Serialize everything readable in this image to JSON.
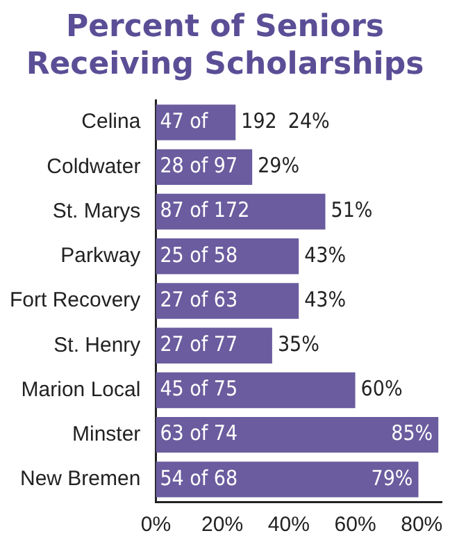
{
  "chart_data": {
    "type": "bar",
    "orientation": "horizontal",
    "title": "Percent of Seniors Receiving Scholarships",
    "categories": [
      "Celina",
      "Coldwater",
      "St. Marys",
      "Parkway",
      "Fort Recovery",
      "St. Henry",
      "Marion Local",
      "Minster",
      "New Bremen"
    ],
    "values": [
      24,
      29,
      51,
      43,
      43,
      35,
      60,
      85,
      79
    ],
    "value_labels": [
      "24%",
      "29%",
      "51%",
      "43%",
      "43%",
      "35%",
      "60%",
      "85%",
      "79%"
    ],
    "color": "#6a5c9e",
    "xlim": [
      0,
      86
    ],
    "xticks": [
      {
        "value": 0,
        "label": "0%"
      },
      {
        "value": 20,
        "label": "20%"
      },
      {
        "value": 40,
        "label": "40%"
      },
      {
        "value": 60,
        "label": "60%"
      },
      {
        "value": 80,
        "label": "80%"
      }
    ],
    "annotations": [
      {
        "text": "47 of",
        "y": "Celina"
      },
      {
        "text": "192",
        "x": 24,
        "y": "Celina"
      },
      {
        "text": "28 of 97",
        "y": "Coldwater"
      },
      {
        "text": "87 of 172",
        "y": "St. Marys"
      },
      {
        "text": "25 of 58",
        "y": "Parkway"
      },
      {
        "text": "27 of 63",
        "y": "Fort Recovery"
      },
      {
        "text": "27 of 77",
        "y": "St. Henry"
      },
      {
        "text": "45 of 75",
        "y": "Marion Local"
      },
      {
        "text": "63 of 74",
        "y": "Minster"
      },
      {
        "text": "54 of 68",
        "y": "New Bremen"
      }
    ],
    "grid": false,
    "legend": false
  }
}
